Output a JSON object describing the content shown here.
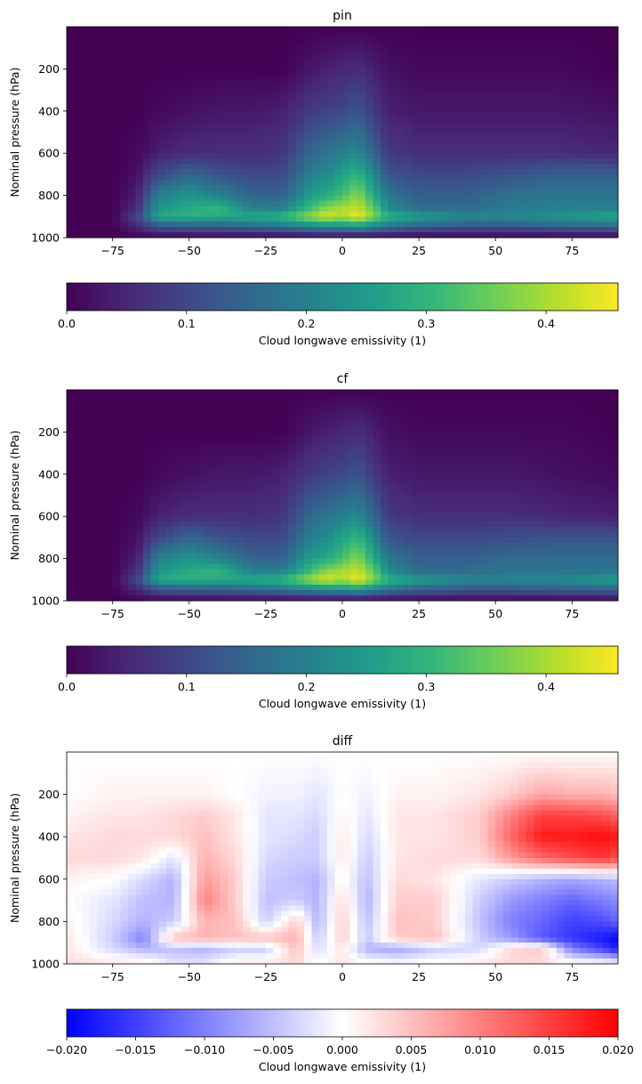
{
  "chart_data": [
    {
      "type": "heatmap",
      "title": "pin",
      "xlabel": "",
      "ylabel": "Nominal pressure (hPa)",
      "xlim": [
        -90,
        90
      ],
      "ylim": [
        0,
        1000
      ],
      "y_inverted": true,
      "xticks": [
        "−75",
        "−50",
        "−25",
        "0",
        "25",
        "50",
        "75"
      ],
      "xtick_values": [
        -75,
        -50,
        -25,
        0,
        25,
        50,
        75
      ],
      "yticks": [
        "200",
        "400",
        "600",
        "800",
        "1000"
      ],
      "ytick_values": [
        200,
        400,
        600,
        800,
        1000
      ],
      "colormap": "viridis",
      "colorbar": {
        "orientation": "horizontal",
        "label": "Cloud longwave emissivity (1)",
        "range": [
          0.0,
          0.46
        ],
        "ticks": [
          "0.0",
          "0.1",
          "0.2",
          "0.3",
          "0.4"
        ],
        "tick_values": [
          0.0,
          0.1,
          0.2,
          0.3,
          0.4
        ]
      },
      "approximate_field": {
        "x": [
          -90,
          -75,
          -67,
          -60,
          -50,
          -40,
          -30,
          -20,
          -10,
          -5,
          0,
          5,
          10,
          15,
          25,
          40,
          55,
          70,
          90
        ],
        "y": [
          0,
          200,
          400,
          600,
          700,
          800,
          860,
          900,
          940,
          1000
        ],
        "values": [
          [
            0.0,
            0.0,
            0.0,
            0.0,
            0.0,
            0.0,
            0.0,
            0.0,
            0.0,
            0.0,
            0.0,
            0.0,
            0.0,
            0.0,
            0.0,
            0.0,
            0.0,
            0.0,
            0.0
          ],
          [
            0.0,
            0.0,
            0.0,
            0.0,
            0.0,
            0.0,
            0.0,
            0.0,
            0.03,
            0.04,
            0.05,
            0.06,
            0.04,
            0.02,
            0.01,
            0.01,
            0.01,
            0.01,
            0.0
          ],
          [
            0.0,
            0.0,
            0.0,
            0.01,
            0.02,
            0.03,
            0.03,
            0.04,
            0.08,
            0.09,
            0.1,
            0.12,
            0.08,
            0.04,
            0.03,
            0.03,
            0.03,
            0.03,
            0.02
          ],
          [
            0.0,
            0.0,
            0.01,
            0.04,
            0.06,
            0.06,
            0.06,
            0.07,
            0.16,
            0.18,
            0.2,
            0.22,
            0.15,
            0.08,
            0.06,
            0.06,
            0.06,
            0.06,
            0.05
          ],
          [
            0.0,
            0.0,
            0.02,
            0.1,
            0.15,
            0.12,
            0.1,
            0.1,
            0.2,
            0.22,
            0.26,
            0.3,
            0.22,
            0.12,
            0.1,
            0.1,
            0.12,
            0.14,
            0.14
          ],
          [
            0.0,
            0.0,
            0.04,
            0.2,
            0.24,
            0.2,
            0.15,
            0.14,
            0.26,
            0.28,
            0.32,
            0.38,
            0.28,
            0.18,
            0.14,
            0.14,
            0.17,
            0.18,
            0.18
          ],
          [
            0.0,
            0.0,
            0.06,
            0.24,
            0.28,
            0.3,
            0.2,
            0.2,
            0.32,
            0.38,
            0.4,
            0.42,
            0.35,
            0.22,
            0.16,
            0.16,
            0.19,
            0.2,
            0.2
          ],
          [
            0.0,
            0.0,
            0.1,
            0.28,
            0.3,
            0.28,
            0.28,
            0.3,
            0.4,
            0.44,
            0.4,
            0.46,
            0.38,
            0.3,
            0.26,
            0.22,
            0.22,
            0.24,
            0.28
          ],
          [
            0.0,
            0.0,
            0.06,
            0.14,
            0.16,
            0.16,
            0.18,
            0.2,
            0.24,
            0.26,
            0.26,
            0.28,
            0.24,
            0.2,
            0.16,
            0.14,
            0.14,
            0.16,
            0.18
          ],
          [
            0.0,
            0.0,
            0.0,
            0.0,
            0.0,
            0.0,
            0.0,
            0.0,
            0.0,
            0.0,
            0.0,
            0.0,
            0.0,
            0.0,
            0.0,
            0.0,
            0.0,
            0.0,
            0.0
          ]
        ]
      }
    },
    {
      "type": "heatmap",
      "title": "cf",
      "xlabel": "",
      "ylabel": "Nominal pressure (hPa)",
      "xlim": [
        -90,
        90
      ],
      "ylim": [
        0,
        1000
      ],
      "y_inverted": true,
      "xticks": [
        "−75",
        "−50",
        "−25",
        "0",
        "25",
        "50",
        "75"
      ],
      "xtick_values": [
        -75,
        -50,
        -25,
        0,
        25,
        50,
        75
      ],
      "yticks": [
        "200",
        "400",
        "600",
        "800",
        "1000"
      ],
      "ytick_values": [
        200,
        400,
        600,
        800,
        1000
      ],
      "colormap": "viridis",
      "colorbar": {
        "orientation": "horizontal",
        "label": "Cloud longwave emissivity (1)",
        "range": [
          0.0,
          0.46
        ],
        "ticks": [
          "0.0",
          "0.1",
          "0.2",
          "0.3",
          "0.4"
        ],
        "tick_values": [
          0.0,
          0.1,
          0.2,
          0.3,
          0.4
        ]
      },
      "approximate_field": {
        "x": [
          -90,
          -75,
          -67,
          -60,
          -50,
          -40,
          -30,
          -20,
          -10,
          -5,
          0,
          5,
          10,
          15,
          25,
          40,
          55,
          70,
          90
        ],
        "y": [
          0,
          200,
          400,
          600,
          700,
          800,
          860,
          900,
          940,
          1000
        ],
        "values": [
          [
            0.0,
            0.0,
            0.0,
            0.0,
            0.0,
            0.0,
            0.0,
            0.0,
            0.0,
            0.0,
            0.0,
            0.0,
            0.0,
            0.0,
            0.0,
            0.0,
            0.0,
            0.0,
            0.0
          ],
          [
            0.0,
            0.0,
            0.0,
            0.0,
            0.0,
            0.0,
            0.0,
            0.0,
            0.03,
            0.04,
            0.05,
            0.06,
            0.04,
            0.02,
            0.01,
            0.01,
            0.01,
            0.01,
            0.0
          ],
          [
            0.0,
            0.0,
            0.0,
            0.01,
            0.02,
            0.03,
            0.03,
            0.04,
            0.08,
            0.09,
            0.1,
            0.12,
            0.08,
            0.04,
            0.03,
            0.03,
            0.03,
            0.02,
            0.01
          ],
          [
            0.0,
            0.0,
            0.01,
            0.04,
            0.06,
            0.06,
            0.06,
            0.07,
            0.16,
            0.18,
            0.2,
            0.22,
            0.15,
            0.08,
            0.06,
            0.06,
            0.06,
            0.05,
            0.04
          ],
          [
            0.0,
            0.0,
            0.02,
            0.1,
            0.15,
            0.12,
            0.1,
            0.1,
            0.2,
            0.22,
            0.26,
            0.3,
            0.22,
            0.12,
            0.1,
            0.1,
            0.11,
            0.12,
            0.12
          ],
          [
            0.0,
            0.0,
            0.04,
            0.2,
            0.24,
            0.2,
            0.15,
            0.14,
            0.26,
            0.28,
            0.32,
            0.38,
            0.28,
            0.18,
            0.14,
            0.14,
            0.16,
            0.16,
            0.16
          ],
          [
            0.0,
            0.0,
            0.06,
            0.24,
            0.28,
            0.3,
            0.2,
            0.2,
            0.32,
            0.38,
            0.4,
            0.42,
            0.35,
            0.22,
            0.16,
            0.16,
            0.18,
            0.18,
            0.18
          ],
          [
            0.0,
            0.0,
            0.1,
            0.28,
            0.3,
            0.28,
            0.28,
            0.3,
            0.4,
            0.44,
            0.4,
            0.46,
            0.38,
            0.3,
            0.26,
            0.22,
            0.22,
            0.22,
            0.26
          ],
          [
            0.0,
            0.0,
            0.06,
            0.14,
            0.16,
            0.16,
            0.18,
            0.2,
            0.24,
            0.26,
            0.26,
            0.28,
            0.24,
            0.2,
            0.16,
            0.14,
            0.14,
            0.15,
            0.17
          ],
          [
            0.0,
            0.0,
            0.0,
            0.0,
            0.0,
            0.0,
            0.0,
            0.0,
            0.0,
            0.0,
            0.0,
            0.0,
            0.0,
            0.0,
            0.0,
            0.0,
            0.0,
            0.0,
            0.0
          ]
        ]
      }
    },
    {
      "type": "heatmap",
      "title": "diff",
      "xlabel": "",
      "ylabel": "Nominal pressure (hPa)",
      "xlim": [
        -90,
        90
      ],
      "ylim": [
        0,
        1000
      ],
      "y_inverted": true,
      "xticks": [
        "−75",
        "−50",
        "−25",
        "0",
        "25",
        "50",
        "75"
      ],
      "xtick_values": [
        -75,
        -50,
        -25,
        0,
        25,
        50,
        75
      ],
      "yticks": [
        "200",
        "400",
        "600",
        "800",
        "1000"
      ],
      "ytick_values": [
        200,
        400,
        600,
        800,
        1000
      ],
      "colormap": "bwr",
      "colorbar": {
        "orientation": "horizontal",
        "label": "Cloud longwave emissivity (1)",
        "range": [
          -0.02,
          0.02
        ],
        "ticks": [
          "−0.020",
          "−0.015",
          "−0.010",
          "−0.005",
          "0.000",
          "0.005",
          "0.010",
          "0.015",
          "0.020"
        ],
        "tick_values": [
          -0.02,
          -0.015,
          -0.01,
          -0.005,
          0.0,
          0.005,
          0.01,
          0.015,
          0.02
        ]
      },
      "approximate_field": {
        "x": [
          -90,
          -75,
          -65,
          -55,
          -45,
          -35,
          -25,
          -15,
          -8,
          0,
          8,
          18,
          30,
          45,
          55,
          65,
          75,
          85,
          90
        ],
        "y": [
          0,
          200,
          300,
          400,
          500,
          600,
          700,
          800,
          880,
          930,
          1000
        ],
        "values": [
          [
            0.0,
            0.0,
            0.0,
            0.0,
            0.0,
            0.0,
            0.0,
            0.0,
            0.0,
            0.0,
            0.0,
            0.0,
            0.0,
            0.0,
            0.0,
            0.0,
            0.0,
            0.0,
            0.0
          ],
          [
            0.0,
            0.001,
            0.001,
            0.001,
            0.001,
            0.0,
            -0.001,
            -0.001,
            -0.002,
            0.0,
            -0.001,
            0.001,
            0.001,
            0.002,
            0.004,
            0.007,
            0.006,
            0.006,
            0.005
          ],
          [
            0.001,
            0.002,
            0.002,
            0.003,
            0.004,
            0.002,
            -0.002,
            -0.002,
            -0.003,
            0.001,
            -0.002,
            0.002,
            0.002,
            0.004,
            0.01,
            0.015,
            0.015,
            0.014,
            0.012
          ],
          [
            0.002,
            0.003,
            0.003,
            0.003,
            0.005,
            0.002,
            -0.002,
            -0.003,
            -0.004,
            0.002,
            -0.003,
            0.002,
            0.002,
            0.004,
            0.012,
            0.018,
            0.018,
            0.019,
            0.018
          ],
          [
            0.003,
            0.003,
            0.002,
            -0.002,
            0.006,
            0.003,
            -0.003,
            -0.004,
            -0.004,
            0.002,
            -0.004,
            0.002,
            0.003,
            0.003,
            0.008,
            0.012,
            0.014,
            0.016,
            0.014
          ],
          [
            0.001,
            0.0,
            -0.003,
            -0.006,
            0.008,
            0.004,
            -0.004,
            -0.005,
            -0.006,
            0.001,
            -0.005,
            0.003,
            0.002,
            -0.002,
            -0.004,
            -0.006,
            -0.007,
            -0.006,
            -0.005
          ],
          [
            0.0,
            -0.002,
            -0.005,
            -0.006,
            0.01,
            0.004,
            -0.005,
            -0.004,
            -0.006,
            0.003,
            -0.006,
            0.004,
            0.004,
            -0.004,
            -0.008,
            -0.01,
            -0.012,
            -0.01,
            -0.009
          ],
          [
            0.001,
            -0.003,
            -0.006,
            -0.004,
            0.006,
            0.005,
            -0.004,
            0.004,
            -0.006,
            0.004,
            -0.005,
            0.005,
            0.004,
            -0.005,
            -0.01,
            -0.012,
            -0.015,
            -0.014,
            -0.012
          ],
          [
            0.002,
            -0.004,
            -0.01,
            0.005,
            0.006,
            0.005,
            0.005,
            0.006,
            -0.004,
            0.004,
            -0.004,
            0.004,
            0.005,
            -0.004,
            -0.008,
            -0.013,
            -0.016,
            -0.018,
            -0.02
          ],
          [
            0.002,
            -0.003,
            -0.006,
            -0.005,
            -0.006,
            -0.004,
            -0.004,
            0.005,
            -0.003,
            0.002,
            -0.006,
            -0.007,
            -0.004,
            -0.003,
            0.003,
            0.004,
            -0.01,
            -0.015,
            -0.018
          ],
          [
            0.003,
            0.002,
            0.002,
            -0.002,
            -0.002,
            0.002,
            0.002,
            0.003,
            0.0,
            0.002,
            0.001,
            0.0,
            0.001,
            0.002,
            0.003,
            0.003,
            0.001,
            0.001,
            0.0
          ]
        ]
      }
    }
  ],
  "colors": {
    "viridis": [
      "#440154",
      "#482878",
      "#3e4989",
      "#31688e",
      "#26828e",
      "#1f9e89",
      "#35b779",
      "#6ece58",
      "#b5de2b",
      "#fde725"
    ],
    "bwr": [
      "#0000ff",
      "#ffffff",
      "#ff0000"
    ]
  }
}
